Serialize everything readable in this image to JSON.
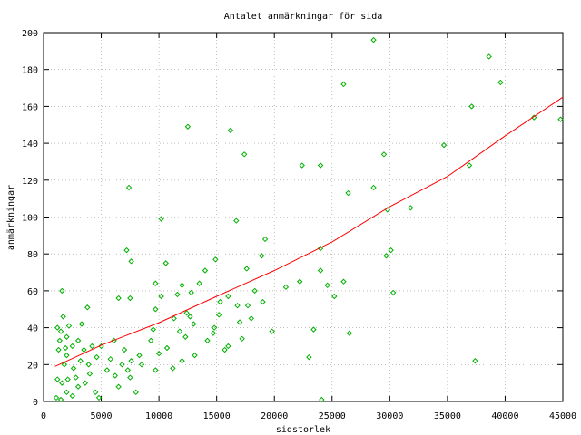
{
  "chart_data": {
    "type": "scatter",
    "title": "Antalet anmärkningar för sida",
    "x_label": "sidstorlek",
    "y_label": "anmärkningar",
    "xlim": [
      0,
      45000
    ],
    "xticks": [
      0,
      5000,
      10000,
      15000,
      20000,
      25000,
      30000,
      35000,
      40000,
      45000
    ],
    "ylim": [
      0,
      200
    ],
    "yticks": [
      0,
      20,
      40,
      60,
      80,
      100,
      120,
      140,
      160,
      180,
      200
    ],
    "grid": true,
    "series": [
      {
        "type": "scatter",
        "color": "#00b000",
        "x": [
          28600,
          38600,
          39600,
          26000,
          37100,
          42500,
          44800,
          16200,
          12500,
          34700,
          29500,
          17400,
          36900,
          22400,
          24000,
          7400,
          26400,
          28600,
          29800,
          31800,
          10200,
          16700,
          19200,
          24000,
          7200,
          30100,
          29700,
          10600,
          7600,
          14900,
          18900,
          14000,
          17600,
          24000,
          22200,
          26000,
          9700,
          12000,
          13500,
          21000,
          24600,
          30300,
          18300,
          11600,
          6500,
          10200,
          12800,
          16000,
          25200,
          7500,
          15300,
          16800,
          17700,
          19000,
          3800,
          9700,
          11300,
          12400,
          12700,
          15200,
          17000,
          18000,
          11800,
          12300,
          14800,
          14700,
          19800,
          23400,
          26500,
          9500,
          13000,
          14200,
          16000,
          10700,
          8300,
          12000,
          13100,
          15700,
          10000,
          17200,
          9300,
          5000,
          3500,
          8500,
          9700,
          11200,
          23000,
          37400,
          24100,
          6200,
          5500,
          7300,
          7600,
          6800,
          7500,
          4000,
          3600,
          4500,
          3000,
          2500,
          1500,
          2000,
          1200,
          1800,
          1400,
          1700,
          1600,
          1200,
          2000,
          2500,
          2000,
          1300,
          1600,
          2600,
          3200,
          2800,
          3900,
          1100,
          2100,
          4800,
          4200,
          3300,
          6100,
          1500,
          1900,
          4600,
          3000,
          2200,
          5800,
          7000,
          8000,
          6500
        ],
        "values": [
          196,
          187,
          173,
          172,
          160,
          154,
          153,
          147,
          149,
          139,
          134,
          134,
          128,
          128,
          128,
          116,
          113,
          116,
          104,
          105,
          99,
          98,
          88,
          83,
          82,
          82,
          79,
          75,
          76,
          77,
          79,
          71,
          72,
          71,
          65,
          65,
          64,
          63,
          64,
          62,
          63,
          59,
          60,
          58,
          56,
          57,
          59,
          57,
          57,
          56,
          54,
          52,
          52,
          54,
          51,
          50,
          45,
          48,
          46,
          47,
          43,
          45,
          38,
          35,
          40,
          37,
          38,
          39,
          37,
          39,
          42,
          33,
          30,
          29,
          25,
          22,
          25,
          28,
          26,
          34,
          33,
          30,
          28,
          20,
          17,
          18,
          24,
          22,
          1,
          14,
          17,
          17,
          22,
          20,
          13,
          15,
          10,
          5,
          8,
          3,
          1,
          5,
          12,
          20,
          33,
          46,
          60,
          40,
          35,
          30,
          25,
          28,
          10,
          18,
          22,
          13,
          20,
          2,
          12,
          2,
          30,
          42,
          33,
          38,
          29,
          24,
          33,
          41,
          23,
          28,
          5,
          8
        ]
      },
      {
        "type": "line",
        "color": "#ff0000",
        "x": [
          1000,
          5000,
          10000,
          15000,
          20000,
          25000,
          30000,
          35000,
          40000,
          45000
        ],
        "values": [
          19,
          30.5,
          42.7,
          57,
          71,
          86.5,
          105.6,
          122,
          144,
          165
        ]
      }
    ]
  }
}
